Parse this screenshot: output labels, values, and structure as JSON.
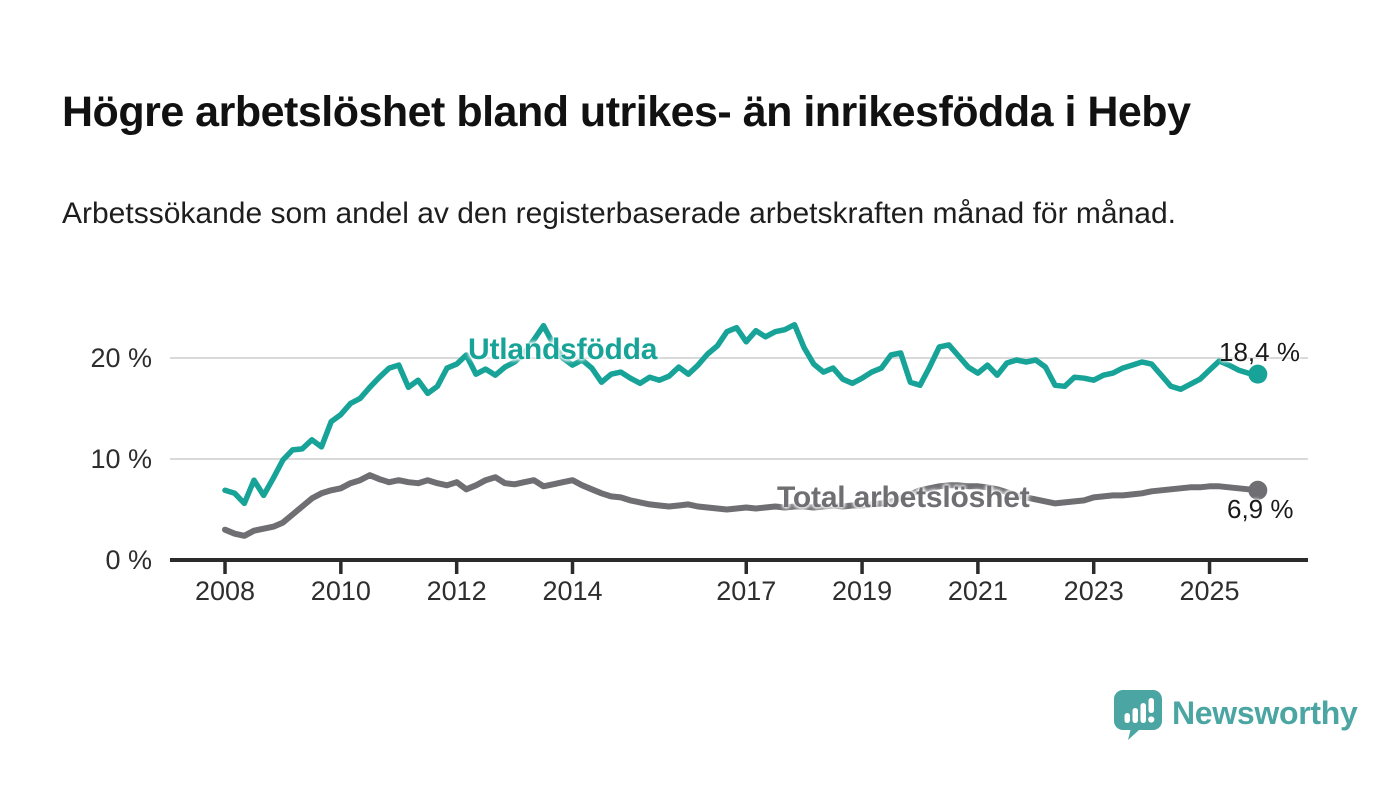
{
  "title": "Högre arbetslöshet bland utrikes- än inrikesfödda i Heby",
  "subtitle": "Arbetssökande som andel av den registerbaserade arbetskraften månad för månad.",
  "footer": {
    "brand": "Newsworthy",
    "logo_icon": "newsworthy-speech-bubble-bar-chart-icon"
  },
  "colors": {
    "accent_teal": "#17a398",
    "series_gray": "#6e6e73",
    "grid": "#d9d9d9",
    "axis": "#2b2b2b",
    "tick_text": "#2e2e2e",
    "text_dark": "#111111",
    "logo_teal": "#4ba5a2"
  },
  "chart_data": {
    "type": "line",
    "unit": "%",
    "frequency_note": "monthly values, approximated every 2 months",
    "grid": "horizontal",
    "x_axis": {
      "range": [
        2007.05,
        2026.7
      ],
      "ticks": [
        2008,
        2010,
        2012,
        2014,
        2017,
        2019,
        2021,
        2023,
        2025
      ],
      "labels": [
        "2008",
        "2010",
        "2012",
        "2014",
        "2017",
        "2019",
        "2021",
        "2023",
        "2025"
      ]
    },
    "y_axis": {
      "range": [
        0,
        25
      ],
      "ticks": [
        0,
        10,
        20
      ],
      "labels": [
        "0 %",
        "10 %",
        "20 %"
      ]
    },
    "series": [
      {
        "name": "Utlandsfödda",
        "color": "#17a398",
        "x_start": 2008.0,
        "x_step": 0.166667,
        "end_value": 18.4,
        "end_label": "18,4 %",
        "values": [
          6.9,
          6.6,
          5.6,
          7.9,
          6.4,
          8.1,
          9.9,
          10.9,
          11.0,
          11.9,
          11.2,
          13.7,
          14.4,
          15.5,
          16.0,
          17.1,
          18.1,
          19.0,
          19.3,
          17.1,
          17.8,
          16.5,
          17.2,
          19.0,
          19.4,
          20.3,
          18.4,
          18.9,
          18.3,
          19.1,
          19.6,
          20.5,
          21.8,
          23.2,
          21.4,
          20.0,
          19.3,
          19.8,
          19.0,
          17.6,
          18.4,
          18.6,
          18.0,
          17.5,
          18.1,
          17.8,
          18.2,
          19.1,
          18.4,
          19.3,
          20.4,
          21.2,
          22.6,
          23.0,
          21.6,
          22.7,
          22.1,
          22.6,
          22.8,
          23.3,
          21.0,
          19.4,
          18.6,
          19.0,
          17.9,
          17.5,
          18.0,
          18.6,
          19.0,
          20.3,
          20.5,
          17.6,
          17.3,
          19.1,
          21.1,
          21.3,
          20.2,
          19.1,
          18.5,
          19.3,
          18.3,
          19.5,
          19.8,
          19.6,
          19.8,
          19.1,
          17.3,
          17.2,
          18.1,
          18.0,
          17.8,
          18.3,
          18.5,
          19.0,
          19.3,
          19.6,
          19.4,
          18.3,
          17.2,
          16.9,
          17.4,
          17.9,
          18.8,
          19.7,
          19.3,
          18.8,
          18.5,
          18.4
        ]
      },
      {
        "name": "Total arbetslöshet",
        "color": "#6e6e73",
        "x_start": 2008.0,
        "x_step": 0.166667,
        "end_value": 6.9,
        "end_label": "6,9 %",
        "values": [
          3.0,
          2.6,
          2.4,
          2.9,
          3.1,
          3.3,
          3.7,
          4.5,
          5.3,
          6.1,
          6.6,
          6.9,
          7.1,
          7.6,
          7.9,
          8.4,
          8.0,
          7.7,
          7.9,
          7.7,
          7.6,
          7.9,
          7.6,
          7.4,
          7.7,
          7.0,
          7.4,
          7.9,
          8.2,
          7.6,
          7.5,
          7.7,
          7.9,
          7.3,
          7.5,
          7.7,
          7.9,
          7.4,
          7.0,
          6.6,
          6.3,
          6.2,
          5.9,
          5.7,
          5.5,
          5.4,
          5.3,
          5.4,
          5.5,
          5.3,
          5.2,
          5.1,
          5.0,
          5.1,
          5.2,
          5.1,
          5.2,
          5.3,
          5.2,
          5.3,
          5.3,
          5.2,
          5.3,
          5.4,
          5.3,
          5.4,
          5.4,
          5.5,
          5.6,
          5.8,
          6.1,
          6.5,
          6.9,
          7.1,
          7.3,
          7.4,
          7.4,
          7.3,
          7.3,
          7.2,
          7.0,
          6.7,
          6.4,
          6.2,
          6.0,
          5.8,
          5.6,
          5.7,
          5.8,
          5.9,
          6.2,
          6.3,
          6.4,
          6.4,
          6.5,
          6.6,
          6.8,
          6.9,
          7.0,
          7.1,
          7.2,
          7.2,
          7.3,
          7.3,
          7.2,
          7.1,
          7.0,
          6.9
        ]
      }
    ]
  }
}
